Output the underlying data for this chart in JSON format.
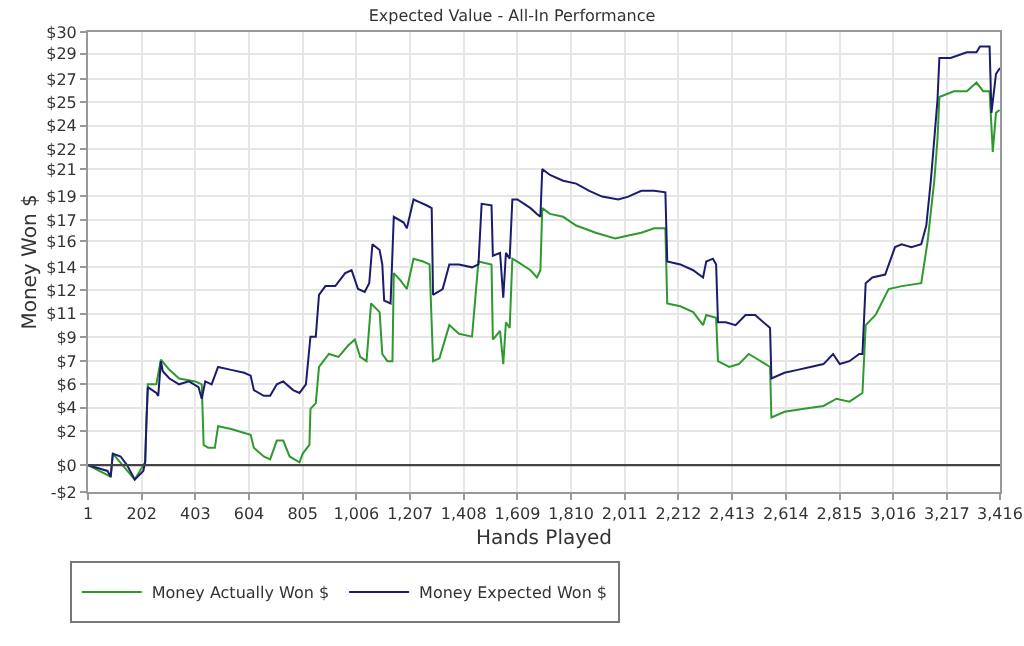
{
  "chart_data": {
    "type": "line",
    "title": "Expected Value - All-In Performance",
    "xlabel": "Hands Played",
    "ylabel": "Money Won $",
    "xlim": [
      1,
      3416
    ],
    "xticks": [
      1,
      202,
      403,
      604,
      805,
      {
        "value": 1006,
        "label": "1,006"
      },
      {
        "value": 1207,
        "label": "1,207"
      },
      {
        "value": 1408,
        "label": "1,408"
      },
      {
        "value": 1609,
        "label": "1,609"
      },
      {
        "value": 1810,
        "label": "1,810"
      },
      {
        "value": 2011,
        "label": "2,011"
      },
      {
        "value": 2212,
        "label": "2,212"
      },
      {
        "value": 2413,
        "label": "2,413"
      },
      {
        "value": 2614,
        "label": "2,614"
      },
      {
        "value": 2815,
        "label": "2,815"
      },
      {
        "value": 3016,
        "label": "3,016"
      },
      {
        "value": 3217,
        "label": "3,217"
      },
      {
        "value": 3416,
        "label": "3,416"
      }
    ],
    "ylim": [
      -1.86,
      30
    ],
    "yticks": [
      {
        "value": -1.86,
        "label": "-$2"
      },
      {
        "value": 0,
        "label": "$0"
      },
      {
        "value": 2.34,
        "label": "$2"
      },
      {
        "value": 3.97,
        "label": "$4"
      },
      {
        "value": 5.6,
        "label": "$6"
      },
      {
        "value": 7.22,
        "label": "$7"
      },
      {
        "value": 8.85,
        "label": "$9"
      },
      {
        "value": 10.5,
        "label": "$11"
      },
      {
        "value": 12.1,
        "label": "$12"
      },
      {
        "value": 13.73,
        "label": "$14"
      },
      {
        "value": 15.5,
        "label": "$16"
      },
      {
        "value": 16.98,
        "label": "$17"
      },
      {
        "value": 18.61,
        "label": "$19"
      },
      {
        "value": 20.5,
        "label": "$21"
      },
      {
        "value": 21.87,
        "label": "$22"
      },
      {
        "value": 23.5,
        "label": "$24"
      },
      {
        "value": 25.12,
        "label": "$25"
      },
      {
        "value": 26.75,
        "label": "$27"
      },
      {
        "value": 28.5,
        "label": "$29"
      },
      {
        "value": 30,
        "label": "$30"
      }
    ],
    "grid": true,
    "legend": "bottom left",
    "marker": "none",
    "line_style": "solid",
    "ref_lines": [
      {
        "axis": "y",
        "value": 0,
        "color": "#444444"
      }
    ],
    "series": [
      {
        "name": "Money Actually Won $",
        "color": "#2e9a2e",
        "x": [
          1,
          86,
          94,
          176,
          215,
          220,
          225,
          257,
          274,
          306,
          342,
          403,
          427,
          434,
          451,
          476,
          488,
          537,
          574,
          610,
          622,
          659,
          683,
          708,
          732,
          756,
          793,
          805,
          830,
          834,
          854,
          866,
          903,
          939,
          976,
          1000,
          1020,
          1044,
          1061,
          1093,
          1103,
          1122,
          1141,
          1146,
          1171,
          1195,
          1220,
          1256,
          1280,
          1293,
          1317,
          1354,
          1390,
          1439,
          1463,
          1512,
          1517,
          1544,
          1556,
          1566,
          1580,
          1590,
          1609,
          1658,
          1682,
          1695,
          1702,
          1731,
          1780,
          1829,
          1902,
          1975,
          2024,
          2073,
          2121,
          2163,
          2170,
          2219,
          2267,
          2304,
          2316,
          2353,
          2360,
          2402,
          2438,
          2475,
          2511,
          2555,
          2560,
          2609,
          2682,
          2755,
          2804,
          2852,
          2901,
          2913,
          2950,
          2999,
          3048,
          3121,
          3145,
          3170,
          3182,
          3189,
          3243,
          3292,
          3328,
          3353,
          3377,
          3389,
          3401,
          3414
        ],
        "values": [
          0,
          -0.8,
          0.8,
          -1.0,
          0.2,
          3.1,
          5.6,
          5.6,
          7.3,
          6.6,
          6.0,
          5.8,
          5.6,
          1.4,
          1.2,
          1.2,
          2.7,
          2.5,
          2.3,
          2.1,
          1.2,
          0.6,
          0.4,
          1.7,
          1.7,
          0.6,
          0.2,
          0.8,
          1.4,
          3.9,
          4.3,
          6.8,
          7.7,
          7.5,
          8.3,
          8.7,
          7.5,
          7.2,
          11.2,
          10.6,
          7.7,
          7.2,
          7.2,
          13.3,
          12.8,
          12.2,
          14.3,
          14.1,
          13.9,
          7.2,
          7.4,
          9.7,
          9.1,
          8.9,
          14.1,
          13.9,
          8.7,
          9.3,
          7.0,
          9.9,
          9.5,
          14.3,
          14.1,
          13.5,
          13.0,
          13.5,
          17.8,
          17.4,
          17.2,
          16.6,
          16.1,
          15.7,
          15.9,
          16.1,
          16.4,
          16.4,
          11.2,
          11.0,
          10.6,
          9.7,
          10.4,
          10.2,
          7.2,
          6.8,
          7.0,
          7.7,
          7.3,
          6.8,
          3.3,
          3.7,
          3.9,
          4.1,
          4.6,
          4.4,
          5.0,
          9.7,
          10.4,
          12.2,
          12.4,
          12.6,
          15.5,
          19.7,
          22.6,
          25.5,
          25.9,
          25.9,
          26.5,
          25.9,
          25.9,
          21.7,
          24.4,
          24.6
        ]
      },
      {
        "name": "Money Expected Won $",
        "color": "#1c1c6e",
        "x": [
          1,
          74,
          86,
          94,
          123,
          147,
          176,
          208,
          215,
          220,
          225,
          257,
          264,
          274,
          281,
          306,
          342,
          379,
          415,
          427,
          440,
          464,
          488,
          537,
          586,
          610,
          622,
          659,
          683,
          708,
          732,
          769,
          793,
          817,
          834,
          854,
          866,
          890,
          927,
          964,
          988,
          1012,
          1037,
          1054,
          1066,
          1093,
          1103,
          1110,
          1134,
          1146,
          1183,
          1195,
          1220,
          1244,
          1268,
          1288,
          1293,
          1329,
          1354,
          1390,
          1439,
          1463,
          1475,
          1512,
          1517,
          1544,
          1556,
          1566,
          1580,
          1590,
          1609,
          1658,
          1682,
          1695,
          1702,
          1731,
          1780,
          1829,
          1878,
          1926,
          1987,
          2024,
          2073,
          2121,
          2163,
          2170,
          2219,
          2267,
          2304,
          2316,
          2341,
          2353,
          2360,
          2389,
          2426,
          2463,
          2499,
          2555,
          2560,
          2609,
          2658,
          2706,
          2755,
          2791,
          2816,
          2852,
          2889,
          2901,
          2913,
          2938,
          2986,
          3023,
          3048,
          3084,
          3121,
          3140,
          3157,
          3170,
          3182,
          3189,
          3231,
          3292,
          3328,
          3341,
          3377,
          3384,
          3401,
          3416
        ],
        "values": [
          0,
          -0.4,
          -0.8,
          0.8,
          0.6,
          0,
          -1.0,
          -0.4,
          0.2,
          3.1,
          5.4,
          5.0,
          4.8,
          7.2,
          6.5,
          6.0,
          5.6,
          5.8,
          5.4,
          4.6,
          5.8,
          5.6,
          6.8,
          6.6,
          6.4,
          6.2,
          5.2,
          4.8,
          4.8,
          5.6,
          5.8,
          5.2,
          5.0,
          5.6,
          8.9,
          8.9,
          11.8,
          12.4,
          12.4,
          13.3,
          13.5,
          12.2,
          12.0,
          12.6,
          15.3,
          14.9,
          13.9,
          11.4,
          11.2,
          17.2,
          16.8,
          16.4,
          18.4,
          18.2,
          18.0,
          17.8,
          11.8,
          12.2,
          13.9,
          13.9,
          13.7,
          13.9,
          18.1,
          18.0,
          14.5,
          14.7,
          11.6,
          14.7,
          14.3,
          18.4,
          18.4,
          17.8,
          17.4,
          17.2,
          20.5,
          20.1,
          19.7,
          19.5,
          19.0,
          18.6,
          18.4,
          18.6,
          19.0,
          19.0,
          18.9,
          14.1,
          13.9,
          13.5,
          13.0,
          14.1,
          14.3,
          13.9,
          9.9,
          9.9,
          9.7,
          10.4,
          10.4,
          9.5,
          6.0,
          6.4,
          6.6,
          6.8,
          7.0,
          7.7,
          7.0,
          7.2,
          7.7,
          7.7,
          12.6,
          13.0,
          13.2,
          15.1,
          15.3,
          15.1,
          15.3,
          16.6,
          19.7,
          22.6,
          25.3,
          28.2,
          28.2,
          28.6,
          28.6,
          29.0,
          29.0,
          24.4,
          27.1,
          27.5
        ]
      }
    ]
  }
}
